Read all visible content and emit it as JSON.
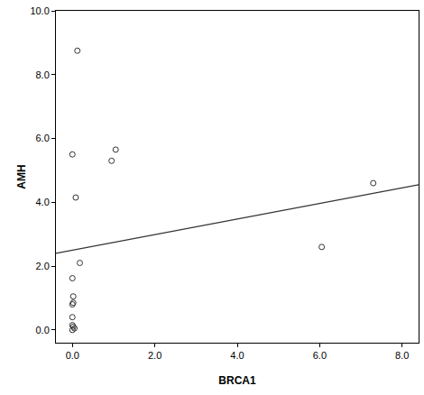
{
  "chart_data": {
    "type": "scatter",
    "x_label": "BRCA1",
    "y_label": "AMH",
    "series": [
      {
        "type": "scatter",
        "marker": "open circle",
        "color": "#333333",
        "x": [
          0.12,
          0.0,
          1.05,
          0.95,
          0.08,
          7.3,
          6.05,
          0.18,
          0.0,
          0.02,
          0.02,
          0.0,
          0.0,
          0.0,
          0.02,
          0.05,
          0.0
        ],
        "values": [
          8.75,
          5.5,
          5.65,
          5.3,
          4.15,
          4.6,
          2.6,
          2.1,
          1.62,
          1.05,
          0.85,
          0.8,
          0.4,
          0.15,
          0.1,
          0.05,
          0.0
        ]
      },
      {
        "type": "line",
        "line_style": "solid",
        "color": "#333333",
        "x": [
          -0.4,
          8.4
        ],
        "values": [
          2.4,
          4.55
        ]
      }
    ],
    "xlim": [
      -0.4,
      8.4
    ],
    "ylim": [
      -0.4,
      10.0
    ],
    "xticks": [
      {
        "value": 0,
        "label": "0.0"
      },
      {
        "value": 2,
        "label": "2.0"
      },
      {
        "value": 4,
        "label": "4.0"
      },
      {
        "value": 6,
        "label": "6.0"
      },
      {
        "value": 8,
        "label": "8.0"
      }
    ],
    "yticks": [
      {
        "value": 0,
        "label": "0.0"
      },
      {
        "value": 2,
        "label": "2.0"
      },
      {
        "value": 4,
        "label": "4.0"
      },
      {
        "value": 6,
        "label": "6.0"
      },
      {
        "value": 8,
        "label": "8.0"
      },
      {
        "value": 10,
        "label": "10.0"
      }
    ],
    "grid": false
  }
}
